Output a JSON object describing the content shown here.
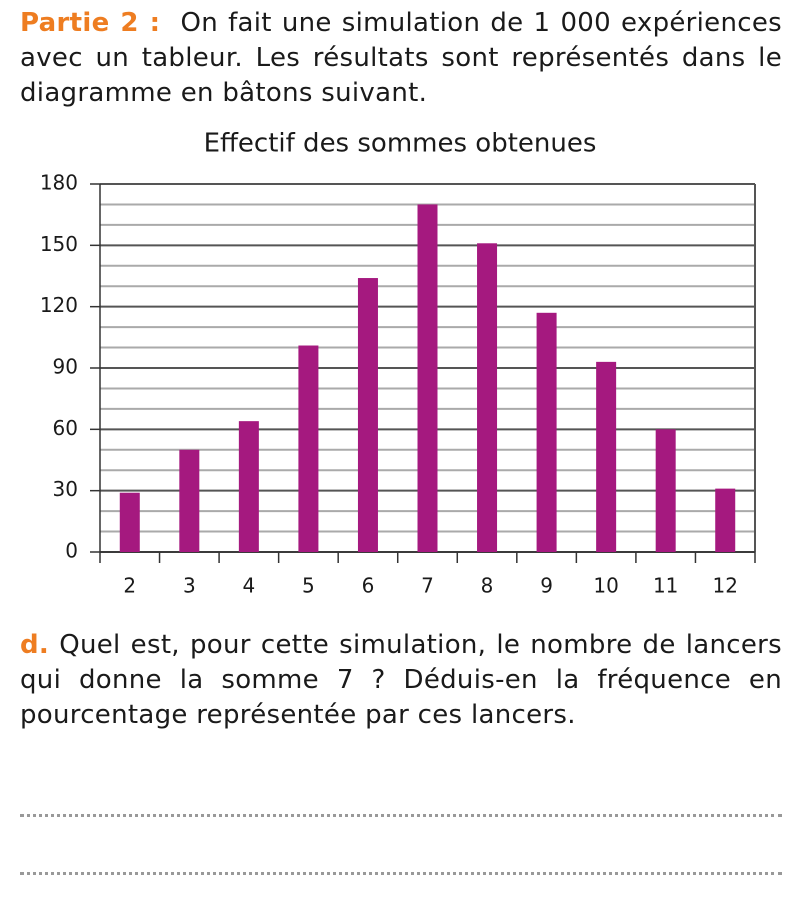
{
  "intro": {
    "label": "Partie 2 :",
    "text": "On fait une simulation de 1 000 expériences avec un tableur. Les résultats sont représentés dans le diagramme en bâtons suivant."
  },
  "chart_data": {
    "type": "bar",
    "title": "Effectif des sommes obtenues",
    "categories": [
      "2",
      "3",
      "4",
      "5",
      "6",
      "7",
      "8",
      "9",
      "10",
      "11",
      "12"
    ],
    "values": [
      29,
      50,
      64,
      101,
      134,
      170,
      151,
      117,
      93,
      60,
      31
    ],
    "color": "#a5197f",
    "ylim": [
      0,
      180
    ],
    "yticks": [
      0,
      30,
      60,
      90,
      120,
      150,
      180
    ],
    "minor_yticks": [
      10,
      20,
      40,
      50,
      70,
      80,
      100,
      110,
      130,
      140,
      160,
      170
    ],
    "grid": true
  },
  "question": {
    "label": "d.",
    "text": "Quel est, pour cette simulation, le nombre de lancers qui donne la somme 7 ? Déduis-en la fréquence en pourcentage représentée par ces lancers."
  }
}
